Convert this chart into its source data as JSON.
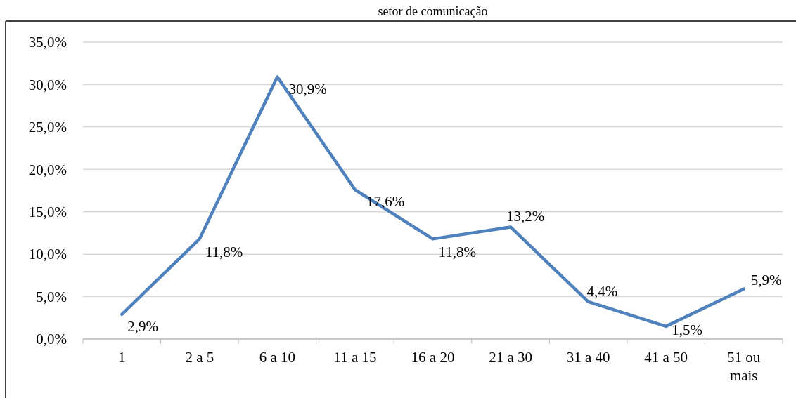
{
  "chart_data": {
    "type": "line",
    "title": "setor de comunicação",
    "categories": [
      "1",
      "2 a 5",
      "6 a 10",
      "11 a 15",
      "16 a 20",
      "21 a 30",
      "31 a 40",
      "41 a 50",
      "51 ou mais"
    ],
    "series": [
      {
        "color": "#4f81bd",
        "values": [
          2.9,
          11.8,
          30.9,
          17.6,
          11.8,
          13.2,
          4.4,
          1.5,
          5.9
        ],
        "value_labels": [
          "2,9%",
          "11,8%",
          "30,9%",
          "17,6%",
          "11,8%",
          "13,2%",
          "4,4%",
          "1,5%",
          "5,9%"
        ]
      }
    ],
    "ylim": [
      0,
      35
    ],
    "yticks": [
      {
        "value": 0,
        "label": "0,0%"
      },
      {
        "value": 5,
        "label": "5,0%"
      },
      {
        "value": 10,
        "label": "10,0%"
      },
      {
        "value": 15,
        "label": "15,0%"
      },
      {
        "value": 20,
        "label": "20,0%"
      },
      {
        "value": 25,
        "label": "25,0%"
      },
      {
        "value": 30,
        "label": "30,0%"
      },
      {
        "value": 35,
        "label": "35,0%"
      }
    ],
    "grid": "y",
    "marker": "none",
    "line_style": "solid"
  }
}
